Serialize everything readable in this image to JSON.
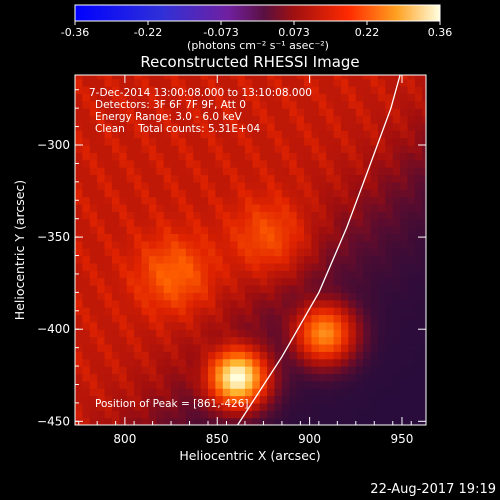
{
  "chart_data": {
    "type": "heatmap",
    "title": "Reconstructed RHESSI Image",
    "xlabel": "Heliocentric X (arcsec)",
    "ylabel": "Heliocentric Y (arcsec)",
    "xlim": [
      773,
      963
    ],
    "ylim": [
      -452,
      -262
    ],
    "xticks": [
      800,
      850,
      900,
      950
    ],
    "yticks": [
      -300,
      -350,
      -400,
      -450
    ],
    "colorbar": {
      "min": -0.36,
      "max": 0.36,
      "ticks": [
        "-0.36",
        "-0.22",
        "-0.073",
        "0.073",
        "0.22",
        "0.36"
      ],
      "unit_label": "(photons cm⁻² s⁻¹ asec⁻²)"
    },
    "annotations": [
      "7-Dec-2014 13:00:08.000 to 13:10:08.000",
      "Detectors: 3F 6F 7F 9F, Att 0",
      "Energy Range: 3.0 - 6.0 keV",
      "Clean    Total counts: 5.31E+04"
    ],
    "peak_label": "Position of Peak = [861,-426]",
    "peak": {
      "x": 861,
      "y": -426
    },
    "sources": [
      {
        "x": 861,
        "y": -426,
        "value": 0.36,
        "width": 9
      },
      {
        "x": 908,
        "y": -402,
        "value": 0.2,
        "width": 9
      },
      {
        "x": 827,
        "y": -370,
        "value": 0.1,
        "width": 13
      },
      {
        "x": 878,
        "y": -350,
        "value": 0.08,
        "width": 13
      }
    ],
    "limb_points": [
      [
        861,
        -452
      ],
      [
        885,
        -415
      ],
      [
        905,
        -380
      ],
      [
        920,
        -345
      ],
      [
        933,
        -310
      ],
      [
        944,
        -280
      ],
      [
        949,
        -262
      ]
    ]
  },
  "footer": "22-Aug-2017 19:19"
}
